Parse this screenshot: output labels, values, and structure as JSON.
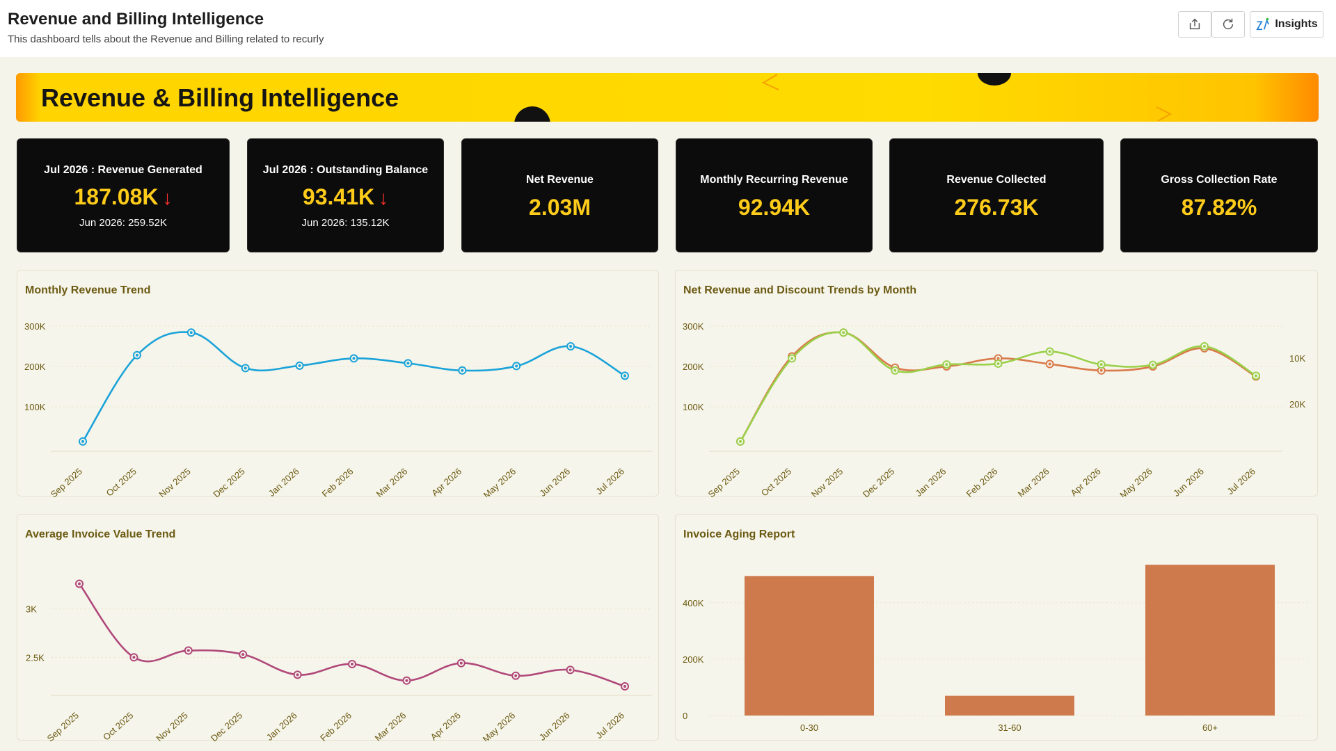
{
  "header": {
    "title": "Revenue and Billing Intelligence",
    "subtitle": "This dashboard tells about the Revenue and Billing related to recurly",
    "insights_label": "Insights"
  },
  "banner": {
    "title": "Revenue & Billing Intelligence"
  },
  "kpis": [
    {
      "label": "Jul 2026 : Revenue Generated",
      "value": "187.08K",
      "arrow": "↓",
      "sub": "Jun 2026: 259.52K"
    },
    {
      "label": "Jul 2026 : Outstanding Balance",
      "value": "93.41K",
      "arrow": "↓",
      "sub": "Jun 2026: 135.12K"
    },
    {
      "label": "Net Revenue",
      "value": "2.03M"
    },
    {
      "label": "Monthly Recurring Revenue",
      "value": "92.94K"
    },
    {
      "label": "Revenue Collected",
      "value": "276.73K"
    },
    {
      "label": "Gross Collection Rate",
      "value": "87.82%"
    }
  ],
  "colors": {
    "accent": "#ffcc1a",
    "banner": "#ffd800",
    "kpi_bg": "#0c0c0c",
    "down": "#ff3030"
  },
  "chart_data": [
    {
      "type": "line",
      "title": "Monthly Revenue Trend",
      "categories": [
        "Sep 2025",
        "Oct 2025",
        "Nov 2025",
        "Dec 2025",
        "Jan 2026",
        "Feb 2026",
        "Mar 2026",
        "Apr 2026",
        "May 2026",
        "Jun 2026",
        "Jul 2026"
      ],
      "series": [
        {
          "color": "#1aa3d9",
          "values": [
            14000,
            228000,
            284000,
            196000,
            202000,
            220000,
            208000,
            190000,
            201000,
            250000,
            177000
          ]
        }
      ],
      "yticks": [
        {
          "v": 100000,
          "label": "100K"
        },
        {
          "v": 200000,
          "label": "200K"
        },
        {
          "v": 300000,
          "label": "300K"
        }
      ],
      "ylim": [
        0,
        300000
      ]
    },
    {
      "type": "line",
      "title": "Net Revenue and Discount Trends by Month",
      "categories": [
        "Sep 2025",
        "Oct 2025",
        "Nov 2025",
        "Dec 2025",
        "Jan 2026",
        "Feb 2026",
        "Mar 2026",
        "Apr 2026",
        "May 2026",
        "Jun 2026",
        "Jul 2026"
      ],
      "series": [
        {
          "color": "#d97a4a",
          "axis": "left",
          "values": [
            14000,
            225000,
            284000,
            197000,
            200000,
            220000,
            206000,
            190000,
            200000,
            245000,
            175000
          ]
        },
        {
          "color": "#9ad04a",
          "axis": "left",
          "values": [
            14000,
            220000,
            284000,
            190000,
            205000,
            207000,
            237000,
            205000,
            204000,
            250000,
            177000
          ]
        }
      ],
      "yticks": [
        {
          "v": 100000,
          "label": "100K"
        },
        {
          "v": 200000,
          "label": "200K"
        },
        {
          "v": 300000,
          "label": "300K"
        }
      ],
      "ylim": [
        0,
        300000
      ],
      "y2ticks": [
        {
          "label": "10K"
        },
        {
          "label": "20K"
        }
      ]
    },
    {
      "type": "line",
      "title": "Average Invoice Value Trend",
      "categories": [
        "Sep 2025",
        "Oct 2025",
        "Nov 2025",
        "Dec 2025",
        "Jan 2026",
        "Feb 2026",
        "Mar 2026",
        "Apr 2026",
        "May 2026",
        "Jun 2026",
        "Jul 2026"
      ],
      "series": [
        {
          "color": "#b0487a",
          "values": [
            3260,
            2500,
            2570,
            2530,
            2320,
            2430,
            2260,
            2440,
            2310,
            2370,
            2200
          ]
        }
      ],
      "yticks": [
        {
          "v": 2500,
          "label": "2.5K"
        },
        {
          "v": 3000,
          "label": "3K"
        }
      ],
      "ylim": [
        2150,
        3400
      ]
    },
    {
      "type": "bar",
      "title": "Invoice Aging Report",
      "categories": [
        "0-30",
        "31-60",
        "60+"
      ],
      "values": [
        495000,
        70000,
        535000
      ],
      "color": "#cf7a4c",
      "yticks": [
        {
          "v": 0,
          "label": "0"
        },
        {
          "v": 200000,
          "label": "200K"
        },
        {
          "v": 400000,
          "label": "400K"
        }
      ],
      "ylim": [
        0,
        560000
      ]
    }
  ]
}
